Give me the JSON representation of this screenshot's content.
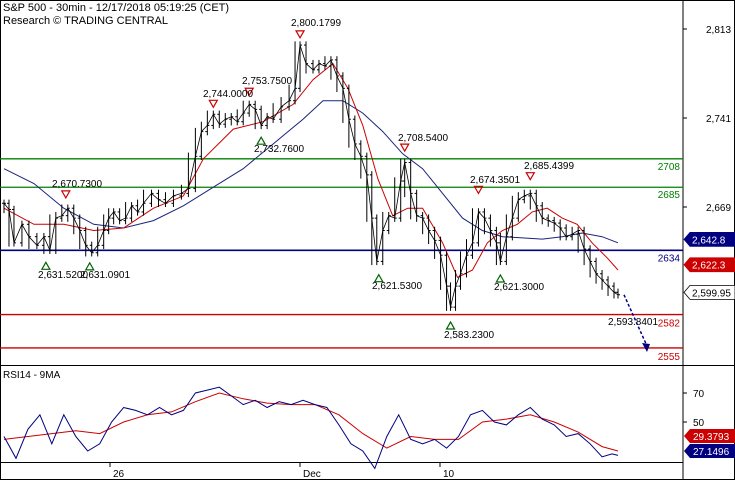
{
  "header": {
    "title": "S&P 500 - 30min - 12/17/2018 05:19:25 (CET)",
    "subtitle": "Research © TRADING CENTRAL"
  },
  "colors": {
    "price": "#000000",
    "ma_fast": "#cc0000",
    "ma_slow": "#1a237e",
    "resistance": "#008000",
    "pivot": "#000080",
    "support": "#cc0000",
    "marker": "#cc0000",
    "marker_up": "#006400",
    "arrow": "#000080",
    "rsi": "#000080",
    "rsi_ma": "#cc0000"
  },
  "chart_data": [
    {
      "type": "line",
      "panel": "price",
      "y_ticks": [
        "2,813",
        "2,741",
        "2,669"
      ],
      "ylim": [
        2550,
        2830
      ],
      "x_ticks": [
        "26",
        "Dec",
        "10"
      ],
      "levels": [
        {
          "label": "2708",
          "value": 2708,
          "kind": "resistance"
        },
        {
          "label": "2685",
          "value": 2685,
          "kind": "resistance"
        },
        {
          "label": "2634",
          "value": 2634,
          "kind": "pivot"
        },
        {
          "label": "2582",
          "value": 2582,
          "kind": "support"
        },
        {
          "label": "2555",
          "value": 2555,
          "kind": "support"
        }
      ],
      "value_tags": [
        {
          "label": "2,642.8",
          "value": 2642.8,
          "kind": "pivot"
        },
        {
          "label": "2,622.3",
          "value": 2622.3,
          "kind": "support"
        },
        {
          "label": "2,599.95",
          "value": 2599.95,
          "kind": "price"
        }
      ],
      "annotations": [
        {
          "label": "2,800.1799",
          "value": 2800.18,
          "dir": "high"
        },
        {
          "label": "2,753.7500",
          "value": 2753.75,
          "dir": "high"
        },
        {
          "label": "2,744.0000",
          "value": 2744.0,
          "dir": "high"
        },
        {
          "label": "2,732.7600",
          "value": 2732.76,
          "dir": "low"
        },
        {
          "label": "2,670.7300",
          "value": 2670.73,
          "dir": "high"
        },
        {
          "label": "2,631.5200",
          "value": 2631.52,
          "dir": "low"
        },
        {
          "label": "2,631.0901",
          "value": 2631.09,
          "dir": "low"
        },
        {
          "label": "2,708.5400",
          "value": 2708.54,
          "dir": "high"
        },
        {
          "label": "2,621.5300",
          "value": 2621.53,
          "dir": "low"
        },
        {
          "label": "2,583.2300",
          "value": 2583.23,
          "dir": "low"
        },
        {
          "label": "2,674.3501",
          "value": 2674.35,
          "dir": "high"
        },
        {
          "label": "2,685.4399",
          "value": 2685.44,
          "dir": "high"
        },
        {
          "label": "2,621.3000",
          "value": 2621.3,
          "dir": "low"
        },
        {
          "label": "2,593.8401",
          "value": 2593.84,
          "dir": "last"
        }
      ],
      "price_path": [
        [
          0,
          2672
        ],
        [
          5,
          2667
        ],
        [
          10,
          2640
        ],
        [
          18,
          2655
        ],
        [
          25,
          2645
        ],
        [
          33,
          2638
        ],
        [
          40,
          2645
        ],
        [
          46,
          2634
        ],
        [
          52,
          2660
        ],
        [
          58,
          2662
        ],
        [
          64,
          2668
        ],
        [
          70,
          2660
        ],
        [
          76,
          2650
        ],
        [
          82,
          2638
        ],
        [
          88,
          2632
        ],
        [
          94,
          2638
        ],
        [
          100,
          2650
        ],
        [
          105,
          2660
        ],
        [
          110,
          2665
        ],
        [
          116,
          2658
        ],
        [
          122,
          2660
        ],
        [
          128,
          2670
        ],
        [
          134,
          2665
        ],
        [
          140,
          2672
        ],
        [
          148,
          2680
        ],
        [
          155,
          2675
        ],
        [
          162,
          2672
        ],
        [
          170,
          2678
        ],
        [
          178,
          2680
        ],
        [
          185,
          2684
        ],
        [
          192,
          2710
        ],
        [
          198,
          2730
        ],
        [
          204,
          2735
        ],
        [
          210,
          2744
        ],
        [
          216,
          2736
        ],
        [
          222,
          2740
        ],
        [
          228,
          2742
        ],
        [
          234,
          2738
        ],
        [
          240,
          2745
        ],
        [
          246,
          2752
        ],
        [
          252,
          2748
        ],
        [
          258,
          2735
        ],
        [
          264,
          2742
        ],
        [
          270,
          2740
        ],
        [
          278,
          2750
        ],
        [
          286,
          2755
        ],
        [
          292,
          2765
        ],
        [
          297,
          2800
        ],
        [
          303,
          2785
        ],
        [
          310,
          2780
        ],
        [
          316,
          2785
        ],
        [
          322,
          2783
        ],
        [
          328,
          2788
        ],
        [
          334,
          2775
        ],
        [
          340,
          2765
        ],
        [
          346,
          2740
        ],
        [
          352,
          2720
        ],
        [
          358,
          2710
        ],
        [
          364,
          2695
        ],
        [
          369,
          2660
        ],
        [
          374,
          2625
        ],
        [
          380,
          2650
        ],
        [
          386,
          2662
        ],
        [
          392,
          2660
        ],
        [
          398,
          2690
        ],
        [
          402,
          2705
        ],
        [
          408,
          2680
        ],
        [
          414,
          2662
        ],
        [
          420,
          2660
        ],
        [
          426,
          2650
        ],
        [
          432,
          2642
        ],
        [
          438,
          2630
        ],
        [
          444,
          2605
        ],
        [
          448,
          2588
        ],
        [
          453,
          2605
        ],
        [
          458,
          2615
        ],
        [
          464,
          2630
        ],
        [
          470,
          2640
        ],
        [
          476,
          2665
        ],
        [
          482,
          2660
        ],
        [
          488,
          2650
        ],
        [
          494,
          2640
        ],
        [
          498,
          2625
        ],
        [
          504,
          2645
        ],
        [
          510,
          2660
        ],
        [
          516,
          2675
        ],
        [
          522,
          2678
        ],
        [
          528,
          2680
        ],
        [
          534,
          2670
        ],
        [
          540,
          2660
        ],
        [
          546,
          2658
        ],
        [
          552,
          2656
        ],
        [
          558,
          2652
        ],
        [
          564,
          2645
        ],
        [
          570,
          2647
        ],
        [
          576,
          2650
        ],
        [
          582,
          2635
        ],
        [
          588,
          2625
        ],
        [
          594,
          2615
        ],
        [
          600,
          2610
        ],
        [
          606,
          2605
        ],
        [
          612,
          2600
        ],
        [
          616,
          2598
        ]
      ],
      "ma_fast_path": [
        [
          0,
          2668
        ],
        [
          30,
          2655
        ],
        [
          60,
          2655
        ],
        [
          90,
          2650
        ],
        [
          120,
          2652
        ],
        [
          150,
          2668
        ],
        [
          180,
          2678
        ],
        [
          200,
          2708
        ],
        [
          230,
          2732
        ],
        [
          260,
          2738
        ],
        [
          290,
          2752
        ],
        [
          310,
          2772
        ],
        [
          330,
          2785
        ],
        [
          345,
          2765
        ],
        [
          360,
          2735
        ],
        [
          375,
          2692
        ],
        [
          390,
          2662
        ],
        [
          405,
          2668
        ],
        [
          420,
          2668
        ],
        [
          440,
          2640
        ],
        [
          455,
          2612
        ],
        [
          470,
          2618
        ],
        [
          485,
          2640
        ],
        [
          500,
          2650
        ],
        [
          515,
          2655
        ],
        [
          530,
          2665
        ],
        [
          545,
          2668
        ],
        [
          560,
          2660
        ],
        [
          575,
          2655
        ],
        [
          590,
          2640
        ],
        [
          605,
          2628
        ],
        [
          616,
          2618
        ]
      ],
      "ma_slow_path": [
        [
          0,
          2700
        ],
        [
          30,
          2688
        ],
        [
          60,
          2668
        ],
        [
          90,
          2655
        ],
        [
          120,
          2652
        ],
        [
          150,
          2658
        ],
        [
          180,
          2670
        ],
        [
          210,
          2685
        ],
        [
          240,
          2700
        ],
        [
          270,
          2720
        ],
        [
          300,
          2740
        ],
        [
          320,
          2755
        ],
        [
          340,
          2755
        ],
        [
          360,
          2745
        ],
        [
          380,
          2730
        ],
        [
          400,
          2712
        ],
        [
          420,
          2700
        ],
        [
          440,
          2680
        ],
        [
          460,
          2660
        ],
        [
          480,
          2650
        ],
        [
          500,
          2645
        ],
        [
          520,
          2644
        ],
        [
          540,
          2643
        ],
        [
          560,
          2645
        ],
        [
          580,
          2648
        ],
        [
          600,
          2645
        ],
        [
          616,
          2640
        ]
      ]
    },
    {
      "type": "line",
      "panel": "indicator",
      "title": "RSI14 - 9MA",
      "y_ticks": [
        "70",
        "50"
      ],
      "ylim": [
        15,
        85
      ],
      "value_tags": [
        {
          "label": "29.3793",
          "value": 29.38,
          "kind": "rsi_ma"
        },
        {
          "label": "27.1496",
          "value": 27.15,
          "kind": "rsi"
        }
      ],
      "rsi_path": [
        [
          0,
          40
        ],
        [
          12,
          25
        ],
        [
          24,
          45
        ],
        [
          36,
          55
        ],
        [
          48,
          35
        ],
        [
          60,
          55
        ],
        [
          72,
          40
        ],
        [
          84,
          30
        ],
        [
          96,
          35
        ],
        [
          108,
          50
        ],
        [
          120,
          60
        ],
        [
          132,
          58
        ],
        [
          144,
          55
        ],
        [
          156,
          60
        ],
        [
          168,
          55
        ],
        [
          180,
          58
        ],
        [
          192,
          70
        ],
        [
          204,
          72
        ],
        [
          216,
          74
        ],
        [
          228,
          68
        ],
        [
          240,
          62
        ],
        [
          252,
          65
        ],
        [
          264,
          60
        ],
        [
          276,
          64
        ],
        [
          288,
          62
        ],
        [
          300,
          65
        ],
        [
          312,
          62
        ],
        [
          324,
          60
        ],
        [
          336,
          48
        ],
        [
          348,
          35
        ],
        [
          360,
          30
        ],
        [
          372,
          18
        ],
        [
          384,
          40
        ],
        [
          396,
          55
        ],
        [
          408,
          38
        ],
        [
          420,
          35
        ],
        [
          432,
          38
        ],
        [
          444,
          32
        ],
        [
          456,
          40
        ],
        [
          468,
          55
        ],
        [
          480,
          58
        ],
        [
          492,
          50
        ],
        [
          504,
          48
        ],
        [
          516,
          55
        ],
        [
          528,
          60
        ],
        [
          540,
          52
        ],
        [
          552,
          48
        ],
        [
          564,
          40
        ],
        [
          576,
          42
        ],
        [
          588,
          35
        ],
        [
          600,
          26
        ],
        [
          610,
          28
        ],
        [
          616,
          27
        ]
      ],
      "rsi_ma_path": [
        [
          0,
          38
        ],
        [
          24,
          40
        ],
        [
          48,
          42
        ],
        [
          72,
          44
        ],
        [
          96,
          42
        ],
        [
          120,
          50
        ],
        [
          144,
          55
        ],
        [
          168,
          57
        ],
        [
          192,
          64
        ],
        [
          216,
          70
        ],
        [
          240,
          66
        ],
        [
          264,
          63
        ],
        [
          288,
          62
        ],
        [
          312,
          62
        ],
        [
          336,
          55
        ],
        [
          360,
          42
        ],
        [
          384,
          32
        ],
        [
          408,
          40
        ],
        [
          432,
          38
        ],
        [
          456,
          38
        ],
        [
          480,
          50
        ],
        [
          504,
          52
        ],
        [
          528,
          55
        ],
        [
          552,
          50
        ],
        [
          576,
          43
        ],
        [
          600,
          33
        ],
        [
          616,
          30
        ]
      ]
    }
  ]
}
